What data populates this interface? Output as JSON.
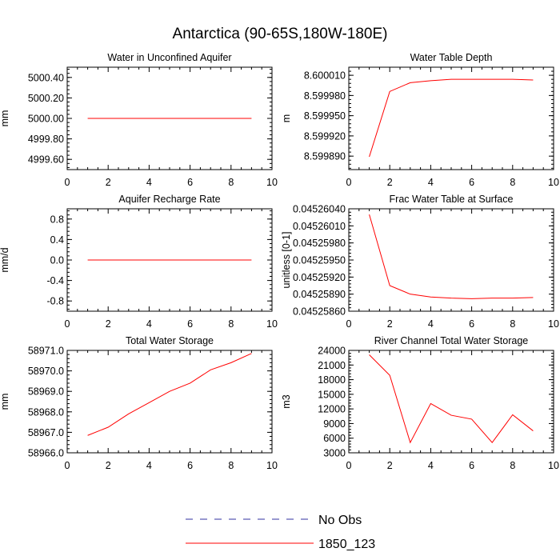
{
  "page": {
    "title": "Antarctica (90-65S,180W-180E)"
  },
  "legend": {
    "items": [
      {
        "label": "No Obs",
        "color": "#3030a0",
        "dashed": true
      },
      {
        "label": "1850_123",
        "color": "#ff0000",
        "dashed": false
      }
    ]
  },
  "chart_data": [
    {
      "type": "line",
      "title": "Water in Unconfined Aquifer",
      "ylabel": "mm",
      "xlim": [
        0,
        10
      ],
      "ylim": [
        4999.5,
        5000.5
      ],
      "xticks": [
        "0",
        "2",
        "4",
        "6",
        "8",
        "10"
      ],
      "yticks": [
        {
          "v": 5000.4,
          "label": "5000.40"
        },
        {
          "v": 5000.2,
          "label": "5000.20"
        },
        {
          "v": 5000.0,
          "label": "5000.00"
        },
        {
          "v": 4999.8,
          "label": "4999.80"
        },
        {
          "v": 4999.6,
          "label": "4999.60"
        }
      ],
      "series": [
        {
          "name": "1850_123",
          "color": "#ff0000",
          "x": [
            1,
            2,
            3,
            4,
            5,
            6,
            7,
            8,
            9
          ],
          "values": [
            5000.0,
            5000.0,
            5000.0,
            5000.0,
            5000.0,
            5000.0,
            5000.0,
            5000.0,
            5000.0
          ]
        }
      ]
    },
    {
      "type": "line",
      "title": "Water Table Depth",
      "ylabel": "m",
      "xlim": [
        0,
        10
      ],
      "ylim": [
        8.59987,
        8.600022
      ],
      "xticks": [
        "0",
        "2",
        "4",
        "6",
        "8",
        "10"
      ],
      "yticks": [
        {
          "v": 8.60001,
          "label": "8.600010"
        },
        {
          "v": 8.59998,
          "label": "8.599980"
        },
        {
          "v": 8.59995,
          "label": "8.599950"
        },
        {
          "v": 8.59992,
          "label": "8.599920"
        },
        {
          "v": 8.59989,
          "label": "8.599890"
        }
      ],
      "series": [
        {
          "name": "1850_123",
          "color": "#ff0000",
          "x": [
            1,
            2,
            3,
            4,
            5,
            6,
            7,
            8,
            9
          ],
          "values": [
            8.599889,
            8.599986,
            8.599999,
            8.600002,
            8.600004,
            8.600004,
            8.600004,
            8.600004,
            8.600003
          ]
        }
      ]
    },
    {
      "type": "line",
      "title": "Aquifer Recharge Rate",
      "ylabel": "mm/d",
      "xlim": [
        0,
        10
      ],
      "ylim": [
        -1.0,
        1.0
      ],
      "xticks": [
        "0",
        "2",
        "4",
        "6",
        "8",
        "10"
      ],
      "yticks": [
        {
          "v": 0.8,
          "label": "0.8"
        },
        {
          "v": 0.4,
          "label": "0.4"
        },
        {
          "v": 0.0,
          "label": "0.0"
        },
        {
          "v": -0.4,
          "label": "-0.4"
        },
        {
          "v": -0.8,
          "label": "-0.8"
        }
      ],
      "series": [
        {
          "name": "1850_123",
          "color": "#ff0000",
          "x": [
            1,
            2,
            3,
            4,
            5,
            6,
            7,
            8,
            9
          ],
          "values": [
            0,
            0,
            0,
            0,
            0,
            0,
            0,
            0,
            0
          ]
        }
      ]
    },
    {
      "type": "line",
      "title": "Frac Water Table at Surface",
      "ylabel": "unitless [0-1]",
      "xlim": [
        0,
        10
      ],
      "ylim": [
        0.0452586,
        0.0452604
      ],
      "xticks": [
        "0",
        "2",
        "4",
        "6",
        "8",
        "10"
      ],
      "yticks": [
        {
          "v": 0.0452604,
          "label": "0.04526040"
        },
        {
          "v": 0.0452601,
          "label": "0.04526010"
        },
        {
          "v": 0.0452598,
          "label": "0.04525980"
        },
        {
          "v": 0.0452595,
          "label": "0.04525950"
        },
        {
          "v": 0.0452592,
          "label": "0.04525920"
        },
        {
          "v": 0.0452589,
          "label": "0.04525890"
        },
        {
          "v": 0.0452586,
          "label": "0.04525860"
        }
      ],
      "series": [
        {
          "name": "1850_123",
          "color": "#ff0000",
          "x": [
            1,
            2,
            3,
            4,
            5,
            6,
            7,
            8,
            9
          ],
          "values": [
            0.0452603,
            0.04525905,
            0.0452589,
            0.04525885,
            0.04525883,
            0.04525882,
            0.04525883,
            0.04525883,
            0.04525884
          ]
        }
      ]
    },
    {
      "type": "line",
      "title": "Total Water Storage",
      "ylabel": "mm",
      "xlim": [
        0,
        10
      ],
      "ylim": [
        58966.0,
        58971.0
      ],
      "xticks": [
        "0",
        "2",
        "4",
        "6",
        "8",
        "10"
      ],
      "yticks": [
        {
          "v": 58971.0,
          "label": "58971.0"
        },
        {
          "v": 58970.0,
          "label": "58970.0"
        },
        {
          "v": 58969.0,
          "label": "58969.0"
        },
        {
          "v": 58968.0,
          "label": "58968.0"
        },
        {
          "v": 58967.0,
          "label": "58967.0"
        },
        {
          "v": 58966.0,
          "label": "58966.0"
        }
      ],
      "series": [
        {
          "name": "1850_123",
          "color": "#ff0000",
          "x": [
            1,
            2,
            3,
            4,
            5,
            6,
            7,
            8,
            9
          ],
          "values": [
            58966.85,
            58967.25,
            58967.9,
            58968.45,
            58969.0,
            58969.4,
            58970.05,
            58970.4,
            58970.85
          ]
        }
      ]
    },
    {
      "type": "line",
      "title": "River Channel Total Water Storage",
      "ylabel": "m3",
      "xlim": [
        0,
        10
      ],
      "ylim": [
        3000,
        24000
      ],
      "xticks": [
        "0",
        "2",
        "4",
        "6",
        "8",
        "10"
      ],
      "yticks": [
        {
          "v": 24000,
          "label": "24000"
        },
        {
          "v": 21000,
          "label": "21000"
        },
        {
          "v": 18000,
          "label": "18000"
        },
        {
          "v": 15000,
          "label": "15000"
        },
        {
          "v": 12000,
          "label": "12000"
        },
        {
          "v": 9000,
          "label": "9000"
        },
        {
          "v": 6000,
          "label": "6000"
        },
        {
          "v": 3000,
          "label": "3000"
        }
      ],
      "series": [
        {
          "name": "1850_123",
          "color": "#ff0000",
          "x": [
            1,
            2,
            3,
            4,
            5,
            6,
            7,
            8,
            9
          ],
          "values": [
            23100,
            18900,
            5100,
            13100,
            10700,
            9900,
            5100,
            10800,
            7500
          ]
        }
      ]
    }
  ]
}
